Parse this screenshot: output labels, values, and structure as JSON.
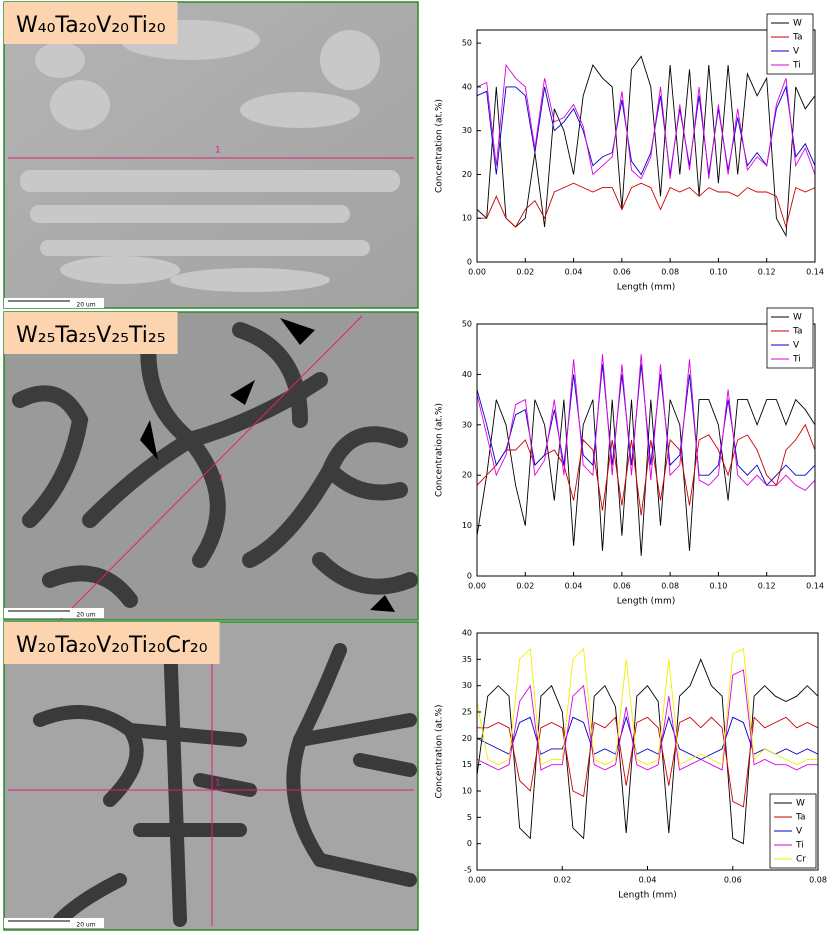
{
  "panels": [
    {
      "label": "W₄₀Ta₂₀V₂₀Ti₂₀",
      "scale_bar": "20 um",
      "marker": "1"
    },
    {
      "label": "W₂₅Ta₂₅V₂₅Ti₂₅",
      "scale_bar": "20 um",
      "marker": "1"
    },
    {
      "label": "W₂₀Ta₂₀V₂₀Ti₂₀Cr₂₀",
      "scale_bar": "20 um",
      "marker": "1"
    }
  ],
  "chart_data": [
    {
      "type": "line",
      "x_label": "Length (mm)",
      "y_label": "Concentration (at.%)",
      "legend": "top-right",
      "x": [
        0,
        0.004,
        0.008,
        0.012,
        0.016,
        0.02,
        0.024,
        0.028,
        0.032,
        0.036,
        0.04,
        0.044,
        0.048,
        0.052,
        0.056,
        0.06,
        0.064,
        0.068,
        0.072,
        0.076,
        0.08,
        0.084,
        0.088,
        0.092,
        0.096,
        0.1,
        0.104,
        0.108,
        0.112,
        0.116,
        0.12,
        0.124,
        0.128,
        0.132,
        0.136,
        0.14
      ],
      "xlim": [
        0,
        0.14
      ],
      "xticks": [
        {
          "value": 0,
          "label": "0.00"
        },
        {
          "value": 0.02,
          "label": "0.02"
        },
        {
          "value": 0.04,
          "label": "0.04"
        },
        {
          "value": 0.06,
          "label": "0.06"
        },
        {
          "value": 0.08,
          "label": "0.08"
        },
        {
          "value": 0.1,
          "label": "0.10"
        },
        {
          "value": 0.12,
          "label": "0.12"
        },
        {
          "value": 0.14,
          "label": "0.14"
        }
      ],
      "ylim": [
        0,
        53
      ],
      "yticks": [
        0,
        10,
        20,
        30,
        40,
        50
      ],
      "series": [
        {
          "name": "W",
          "color": "#000000",
          "values": [
            12,
            10,
            40,
            10,
            8,
            10,
            25,
            8,
            35,
            30,
            20,
            38,
            45,
            42,
            40,
            12,
            44,
            47,
            40,
            15,
            45,
            20,
            44,
            15,
            45,
            18,
            45,
            20,
            43,
            38,
            42,
            10,
            6,
            40,
            35,
            38
          ]
        },
        {
          "name": "Ta",
          "color": "#cc0000",
          "values": [
            10,
            10,
            15,
            10,
            8,
            12,
            14,
            10,
            16,
            17,
            18,
            17,
            16,
            17,
            17,
            12,
            17,
            18,
            17,
            12,
            17,
            16,
            17,
            15,
            17,
            16,
            16,
            15,
            17,
            16,
            16,
            15,
            8,
            17,
            16,
            17
          ]
        },
        {
          "name": "V",
          "color": "#0000cc",
          "values": [
            38,
            39,
            20,
            40,
            40,
            38,
            25,
            40,
            30,
            32,
            35,
            30,
            22,
            24,
            25,
            37,
            23,
            20,
            25,
            38,
            20,
            35,
            22,
            38,
            20,
            35,
            21,
            33,
            22,
            25,
            22,
            35,
            40,
            24,
            27,
            22
          ]
        },
        {
          "name": "Ti",
          "color": "#e000e0",
          "values": [
            40,
            41,
            22,
            45,
            42,
            40,
            26,
            42,
            32,
            33,
            36,
            31,
            20,
            22,
            24,
            39,
            21,
            19,
            24,
            40,
            19,
            36,
            21,
            40,
            19,
            36,
            20,
            35,
            21,
            24,
            22,
            36,
            42,
            22,
            26,
            20
          ]
        }
      ]
    },
    {
      "type": "line",
      "x_label": "Length (mm)",
      "y_label": "Concentration (at.%)",
      "legend": "top-right",
      "x": [
        0,
        0.004,
        0.008,
        0.012,
        0.016,
        0.02,
        0.024,
        0.028,
        0.032,
        0.036,
        0.04,
        0.044,
        0.048,
        0.052,
        0.056,
        0.06,
        0.064,
        0.068,
        0.072,
        0.076,
        0.08,
        0.084,
        0.088,
        0.092,
        0.096,
        0.1,
        0.104,
        0.108,
        0.112,
        0.116,
        0.12,
        0.124,
        0.128,
        0.132,
        0.136,
        0.14
      ],
      "xlim": [
        0,
        0.14
      ],
      "xticks": [
        {
          "value": 0,
          "label": "0.00"
        },
        {
          "value": 0.02,
          "label": "0.02"
        },
        {
          "value": 0.04,
          "label": "0.04"
        },
        {
          "value": 0.06,
          "label": "0.06"
        },
        {
          "value": 0.08,
          "label": "0.08"
        },
        {
          "value": 0.1,
          "label": "0.10"
        },
        {
          "value": 0.12,
          "label": "0.12"
        },
        {
          "value": 0.14,
          "label": "0.14"
        }
      ],
      "ylim": [
        0,
        50
      ],
      "yticks": [
        0,
        10,
        20,
        30,
        40,
        50
      ],
      "series": [
        {
          "name": "W",
          "color": "#000000",
          "values": [
            8,
            20,
            35,
            30,
            18,
            10,
            35,
            30,
            15,
            35,
            6,
            30,
            35,
            5,
            35,
            8,
            35,
            4,
            35,
            10,
            35,
            30,
            5,
            35,
            35,
            30,
            15,
            35,
            35,
            30,
            35,
            35,
            30,
            35,
            33,
            30
          ]
        },
        {
          "name": "Ta",
          "color": "#cc0000",
          "values": [
            18,
            20,
            22,
            25,
            25,
            27,
            22,
            24,
            25,
            22,
            15,
            27,
            25,
            13,
            27,
            14,
            27,
            12,
            27,
            15,
            27,
            25,
            14,
            27,
            28,
            25,
            20,
            27,
            28,
            25,
            20,
            18,
            25,
            27,
            30,
            25
          ]
        },
        {
          "name": "V",
          "color": "#0000cc",
          "values": [
            37,
            30,
            22,
            25,
            32,
            33,
            22,
            24,
            33,
            22,
            40,
            24,
            22,
            42,
            22,
            40,
            22,
            42,
            22,
            40,
            22,
            24,
            40,
            20,
            20,
            22,
            35,
            22,
            20,
            22,
            18,
            20,
            22,
            20,
            20,
            22
          ]
        },
        {
          "name": "Ti",
          "color": "#e000e0",
          "values": [
            36,
            28,
            20,
            24,
            34,
            35,
            20,
            23,
            35,
            20,
            43,
            22,
            20,
            44,
            20,
            42,
            20,
            44,
            19,
            42,
            20,
            22,
            43,
            19,
            18,
            20,
            37,
            20,
            18,
            20,
            18,
            18,
            20,
            18,
            17,
            19
          ]
        }
      ]
    },
    {
      "type": "line",
      "x_label": "Length (mm)",
      "y_label": "Concentration (at.%)",
      "legend": "bottom-right",
      "x": [
        0,
        0.0025,
        0.005,
        0.0075,
        0.01,
        0.0125,
        0.015,
        0.0175,
        0.02,
        0.0225,
        0.025,
        0.0275,
        0.03,
        0.0325,
        0.035,
        0.0375,
        0.04,
        0.0425,
        0.045,
        0.0475,
        0.05,
        0.0525,
        0.055,
        0.0575,
        0.06,
        0.0625,
        0.065,
        0.0675,
        0.07,
        0.0725,
        0.075,
        0.0775,
        0.08
      ],
      "xlim": [
        0,
        0.08
      ],
      "xticks": [
        {
          "value": 0,
          "label": "0.00"
        },
        {
          "value": 0.02,
          "label": "0.02"
        },
        {
          "value": 0.04,
          "label": "0.04"
        },
        {
          "value": 0.06,
          "label": "0.06"
        },
        {
          "value": 0.08,
          "label": "0.08"
        }
      ],
      "ylim": [
        -5,
        40
      ],
      "yticks": [
        -5,
        0,
        5,
        10,
        15,
        20,
        25,
        30,
        35,
        40
      ],
      "series": [
        {
          "name": "W",
          "color": "#000000",
          "values": [
            13,
            28,
            30,
            28,
            3,
            1,
            28,
            30,
            25,
            3,
            1,
            28,
            30,
            26,
            2,
            28,
            30,
            27,
            2,
            28,
            30,
            35,
            30,
            28,
            1,
            0,
            28,
            30,
            28,
            27,
            28,
            30,
            28
          ]
        },
        {
          "name": "Ta",
          "color": "#cc0000",
          "values": [
            22,
            22,
            23,
            22,
            12,
            10,
            22,
            23,
            22,
            10,
            9,
            23,
            22,
            24,
            11,
            23,
            24,
            22,
            11,
            23,
            24,
            22,
            24,
            22,
            8,
            7,
            24,
            22,
            23,
            24,
            22,
            23,
            22
          ]
        },
        {
          "name": "V",
          "color": "#0000cc",
          "values": [
            20,
            19,
            18,
            17,
            23,
            24,
            17,
            18,
            18,
            24,
            23,
            17,
            18,
            17,
            24,
            17,
            18,
            17,
            24,
            18,
            17,
            16,
            17,
            18,
            24,
            23,
            17,
            18,
            17,
            18,
            17,
            18,
            17
          ]
        },
        {
          "name": "Ti",
          "color": "#e000e0",
          "values": [
            16,
            15,
            14,
            15,
            27,
            30,
            14,
            15,
            15,
            28,
            30,
            15,
            14,
            15,
            26,
            15,
            14,
            15,
            28,
            14,
            15,
            16,
            15,
            14,
            32,
            33,
            15,
            16,
            15,
            15,
            14,
            15,
            15
          ]
        },
        {
          "name": "Cr",
          "color": "#f0f000",
          "values": [
            27,
            16,
            15,
            16,
            35,
            37,
            15,
            16,
            16,
            35,
            37,
            16,
            15,
            16,
            35,
            16,
            15,
            16,
            35,
            15,
            16,
            17,
            16,
            15,
            36,
            37,
            16,
            18,
            17,
            16,
            15,
            16,
            16
          ]
        }
      ]
    }
  ]
}
